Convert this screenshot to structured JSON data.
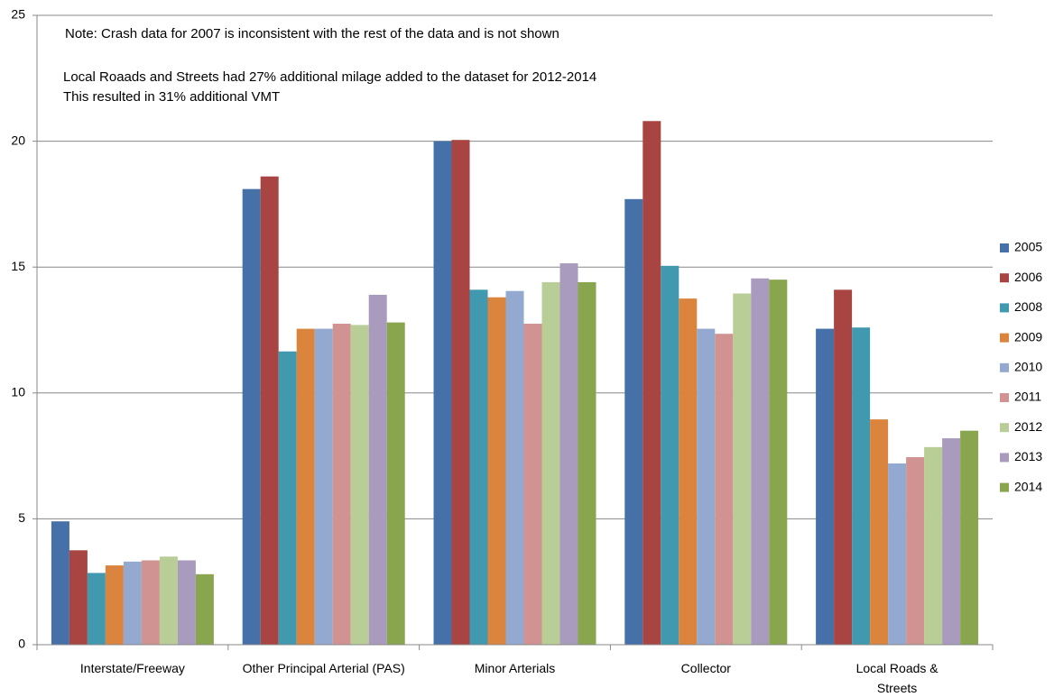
{
  "chart_data": {
    "type": "bar",
    "annotations": [
      "Note: Crash data for 2007 is inconsistent with the rest of the data and is not shown",
      "Local Roaads and Streets had 27% additional milage added to the dataset for 2012-2014",
      "This resulted in 31% additional VMT"
    ],
    "categories": [
      "Interstate/Freeway",
      "Other Principal Arterial (PAS)",
      "Minor Arterials",
      "Collector",
      "Local Roads & Streets"
    ],
    "series": [
      {
        "name": "2005",
        "color": "#4570a8",
        "values": [
          4.9,
          18.1,
          20.0,
          17.7,
          12.55
        ]
      },
      {
        "name": "2006",
        "color": "#a84542",
        "values": [
          3.75,
          18.6,
          20.05,
          20.8,
          14.1
        ]
      },
      {
        "name": "2008",
        "color": "#4199b0",
        "values": [
          2.85,
          11.65,
          14.1,
          15.05,
          12.6
        ]
      },
      {
        "name": "2009",
        "color": "#db843d",
        "values": [
          3.15,
          12.55,
          13.8,
          13.75,
          8.95
        ]
      },
      {
        "name": "2010",
        "color": "#93a9cf",
        "values": [
          3.3,
          12.55,
          14.05,
          12.55,
          7.2
        ]
      },
      {
        "name": "2011",
        "color": "#d19392",
        "values": [
          3.35,
          12.75,
          12.75,
          12.35,
          7.45
        ]
      },
      {
        "name": "2012",
        "color": "#b9cd96",
        "values": [
          3.5,
          12.7,
          14.4,
          13.95,
          7.85
        ]
      },
      {
        "name": "2013",
        "color": "#a99bbd",
        "values": [
          3.35,
          13.9,
          15.15,
          14.55,
          8.2
        ]
      },
      {
        "name": "2014",
        "color": "#89a54e",
        "values": [
          2.8,
          12.8,
          14.4,
          14.5,
          8.5
        ]
      }
    ],
    "ylim": [
      0,
      25
    ],
    "yticks": [
      0,
      5,
      10,
      15,
      20,
      25
    ],
    "grid": true,
    "legend": "right"
  }
}
